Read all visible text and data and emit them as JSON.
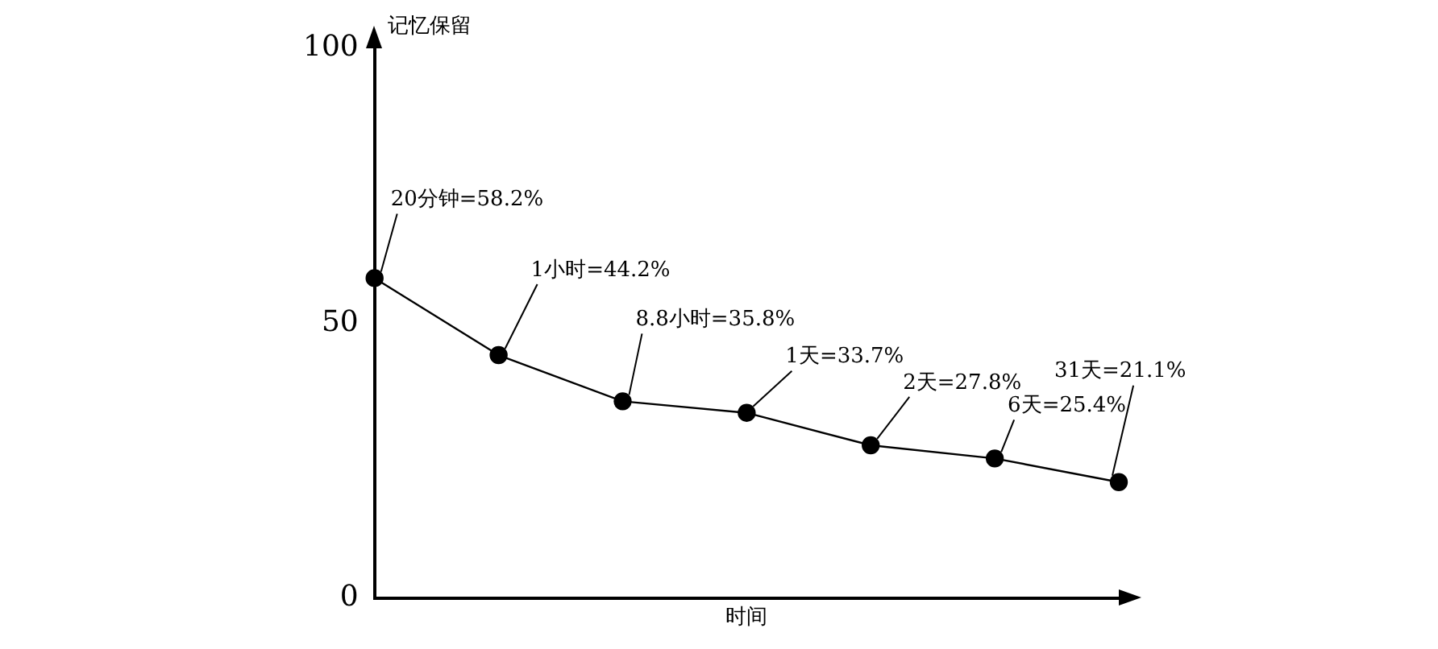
{
  "chart_data": {
    "type": "line",
    "ylabel": "记忆保留",
    "xlabel": "时间",
    "categories": [
      null,
      null,
      null,
      null,
      null,
      null,
      null
    ],
    "series": [
      {
        "color": "#000000",
        "values": [
          58.2,
          44.2,
          35.8,
          33.7,
          27.8,
          25.4,
          21.1
        ],
        "value_labels": [
          "20分钟=58.2%",
          "1小时=44.2%",
          "8.8小时=35.8%",
          "1天=33.7%",
          "2天=27.8%",
          "6天=25.4%",
          "31天=21.1%"
        ]
      }
    ],
    "ylim": [
      0,
      100
    ],
    "yticks": [
      0,
      50,
      100
    ],
    "tick_labels": "y",
    "grid": false,
    "legend": false,
    "marker": "circle",
    "line_style": "solid"
  }
}
